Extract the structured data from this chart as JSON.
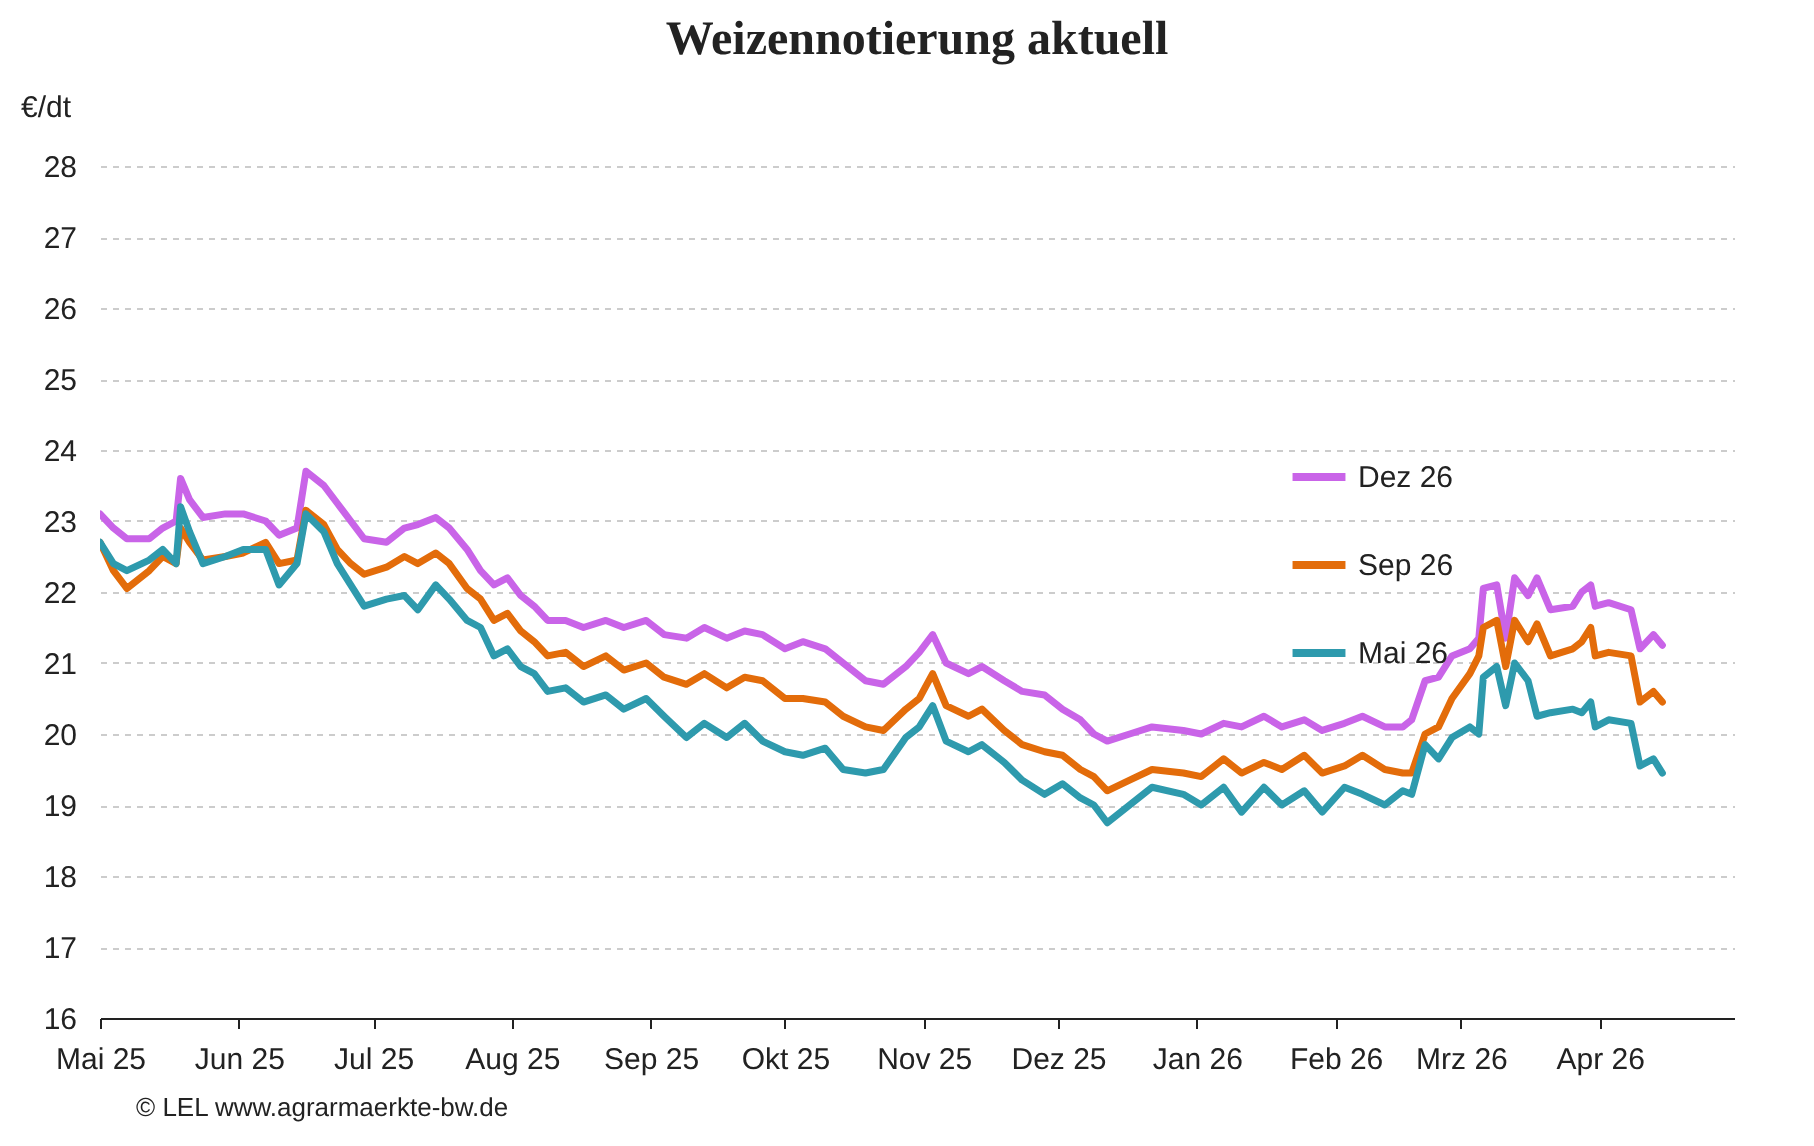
{
  "chart_data": {
    "type": "line",
    "title": "Weizennotierung aktuell",
    "ylabel": "€/dt",
    "annotations": [
      "© LEL www.agrarmaerkte-bw.de"
    ],
    "x": [
      "2025-05-01",
      "2025-05-04",
      "2025-05-07",
      "2025-05-12",
      "2025-05-15",
      "2025-05-18",
      "2025-05-19",
      "2025-05-21",
      "2025-05-24",
      "2025-05-29",
      "2025-06-02",
      "2025-06-07",
      "2025-06-10",
      "2025-06-14",
      "2025-06-16",
      "2025-06-20",
      "2025-06-23",
      "2025-06-26",
      "2025-06-29",
      "2025-07-04",
      "2025-07-08",
      "2025-07-11",
      "2025-07-15",
      "2025-07-18",
      "2025-07-22",
      "2025-07-25",
      "2025-07-28",
      "2025-07-31",
      "2025-08-03",
      "2025-08-06",
      "2025-08-09",
      "2025-08-13",
      "2025-08-17",
      "2025-08-22",
      "2025-08-26",
      "2025-08-31",
      "2025-09-04",
      "2025-09-09",
      "2025-09-13",
      "2025-09-18",
      "2025-09-22",
      "2025-09-26",
      "2025-10-01",
      "2025-10-05",
      "2025-10-10",
      "2025-10-14",
      "2025-10-19",
      "2025-10-23",
      "2025-10-28",
      "2025-10-31",
      "2025-11-03",
      "2025-11-06",
      "2025-11-11",
      "2025-11-14",
      "2025-11-19",
      "2025-11-23",
      "2025-11-28",
      "2025-12-02",
      "2025-12-06",
      "2025-12-09",
      "2025-12-12",
      "2025-12-17",
      "2025-12-22",
      "2025-12-29",
      "2026-01-02",
      "2026-01-07",
      "2026-01-11",
      "2026-01-16",
      "2026-01-20",
      "2026-01-25",
      "2026-01-29",
      "2026-02-03",
      "2026-02-07",
      "2026-02-12",
      "2026-02-16",
      "2026-02-18",
      "2026-02-21",
      "2026-02-24",
      "2026-02-27",
      "2026-03-03",
      "2026-03-05",
      "2026-03-06",
      "2026-03-09",
      "2026-03-11",
      "2026-03-13",
      "2026-03-16",
      "2026-03-18",
      "2026-03-21",
      "2026-03-26",
      "2026-03-28",
      "2026-03-30",
      "2026-03-31",
      "2026-04-03",
      "2026-04-08",
      "2026-04-10",
      "2026-04-13",
      "2026-04-15"
    ],
    "series": [
      {
        "name": "Dez 26",
        "color": "#c964e8",
        "values": [
          23.1,
          22.9,
          22.75,
          22.75,
          22.9,
          23.0,
          23.6,
          23.3,
          23.05,
          23.1,
          23.1,
          23.0,
          22.8,
          22.9,
          23.7,
          23.5,
          23.25,
          23.0,
          22.75,
          22.7,
          22.9,
          22.95,
          23.05,
          22.9,
          22.6,
          22.3,
          22.1,
          22.2,
          21.95,
          21.8,
          21.6,
          21.6,
          21.5,
          21.6,
          21.5,
          21.6,
          21.4,
          21.35,
          21.5,
          21.35,
          21.45,
          21.4,
          21.2,
          21.3,
          21.2,
          21.0,
          20.75,
          20.7,
          20.95,
          21.15,
          21.4,
          21.0,
          20.85,
          20.95,
          20.75,
          20.6,
          20.55,
          20.35,
          20.2,
          20.0,
          19.9,
          20.0,
          20.1,
          20.05,
          20.0,
          20.15,
          20.1,
          20.25,
          20.1,
          20.2,
          20.05,
          20.15,
          20.25,
          20.1,
          20.1,
          20.2,
          20.75,
          20.8,
          21.1,
          21.2,
          21.35,
          22.05,
          22.1,
          21.35,
          22.2,
          21.95,
          22.2,
          21.75,
          21.8,
          22.0,
          22.1,
          21.8,
          21.85,
          21.75,
          21.2,
          21.4,
          21.25
        ]
      },
      {
        "name": "Sep 26",
        "color": "#e36c0a",
        "values": [
          22.7,
          22.3,
          22.05,
          22.3,
          22.5,
          22.4,
          22.9,
          22.7,
          22.45,
          22.5,
          22.55,
          22.7,
          22.4,
          22.45,
          23.15,
          22.95,
          22.6,
          22.4,
          22.25,
          22.35,
          22.5,
          22.4,
          22.55,
          22.4,
          22.05,
          21.9,
          21.6,
          21.7,
          21.45,
          21.3,
          21.1,
          21.15,
          20.95,
          21.1,
          20.9,
          21.0,
          20.8,
          20.7,
          20.85,
          20.65,
          20.8,
          20.75,
          20.5,
          20.5,
          20.45,
          20.25,
          20.1,
          20.05,
          20.35,
          20.5,
          20.85,
          20.4,
          20.25,
          20.35,
          20.05,
          19.85,
          19.75,
          19.7,
          19.5,
          19.4,
          19.2,
          19.35,
          19.5,
          19.45,
          19.4,
          19.65,
          19.45,
          19.6,
          19.5,
          19.7,
          19.45,
          19.55,
          19.7,
          19.5,
          19.45,
          19.45,
          20.0,
          20.1,
          20.5,
          20.85,
          21.1,
          21.5,
          21.6,
          20.95,
          21.6,
          21.3,
          21.55,
          21.1,
          21.2,
          21.3,
          21.5,
          21.1,
          21.15,
          21.1,
          20.45,
          20.6,
          20.45
        ]
      },
      {
        "name": "Mai 26",
        "color": "#2e9aad",
        "values": [
          22.7,
          22.4,
          22.3,
          22.45,
          22.6,
          22.4,
          23.2,
          22.85,
          22.4,
          22.5,
          22.6,
          22.6,
          22.1,
          22.4,
          23.1,
          22.85,
          22.4,
          22.1,
          21.8,
          21.9,
          21.95,
          21.75,
          22.1,
          21.9,
          21.6,
          21.5,
          21.1,
          21.2,
          20.95,
          20.85,
          20.6,
          20.65,
          20.45,
          20.55,
          20.35,
          20.5,
          20.25,
          19.95,
          20.15,
          19.95,
          20.15,
          19.9,
          19.75,
          19.7,
          19.8,
          19.5,
          19.45,
          19.5,
          19.95,
          20.1,
          20.4,
          19.9,
          19.75,
          19.85,
          19.6,
          19.35,
          19.15,
          19.3,
          19.1,
          19.0,
          18.75,
          19.0,
          19.25,
          19.15,
          19.0,
          19.25,
          18.9,
          19.25,
          19.0,
          19.2,
          18.9,
          19.25,
          19.15,
          19.0,
          19.2,
          19.15,
          19.85,
          19.65,
          19.95,
          20.1,
          20.0,
          20.8,
          20.95,
          20.4,
          21.0,
          20.75,
          20.25,
          20.3,
          20.35,
          20.3,
          20.45,
          20.1,
          20.2,
          20.15,
          19.55,
          19.65,
          19.45
        ]
      }
    ],
    "xlim": [
      "2025-05-01",
      "2026-05-01"
    ],
    "xticks": [
      {
        "value": "2025-05-01",
        "label": "Mai 25"
      },
      {
        "value": "2025-06-01",
        "label": "Jun 25"
      },
      {
        "value": "2025-07-01",
        "label": "Jul 25"
      },
      {
        "value": "2025-08-01",
        "label": "Aug 25"
      },
      {
        "value": "2025-09-01",
        "label": "Sep 25"
      },
      {
        "value": "2025-10-01",
        "label": "Okt 25"
      },
      {
        "value": "2025-11-01",
        "label": "Nov 25"
      },
      {
        "value": "2025-12-01",
        "label": "Dez 25"
      },
      {
        "value": "2026-01-01",
        "label": "Jan 26"
      },
      {
        "value": "2026-02-01",
        "label": "Feb 26"
      },
      {
        "value": "2026-03-01",
        "label": "Mrz 26"
      },
      {
        "value": "2026-04-01",
        "label": "Apr 26"
      }
    ],
    "ylim": [
      16,
      28
    ],
    "yticks": [
      16,
      17,
      18,
      19,
      20,
      21,
      22,
      23,
      24,
      25,
      26,
      27,
      28
    ],
    "grid": "y",
    "legend": "top right",
    "marker": "none",
    "line_style": "solid"
  }
}
